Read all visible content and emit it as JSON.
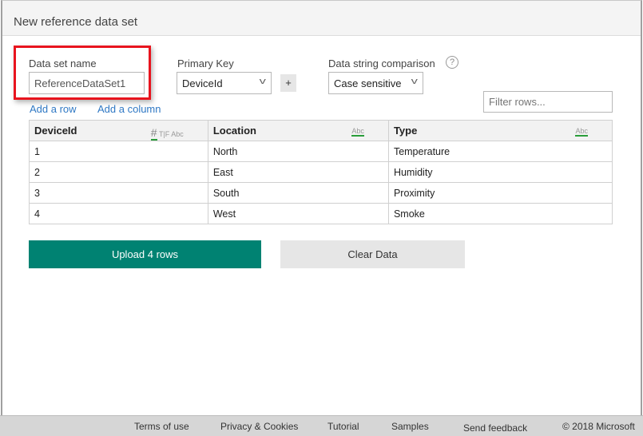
{
  "title": "New reference data set",
  "dataset": {
    "label": "Data set name",
    "value": "ReferenceDataSet1"
  },
  "primary_key": {
    "label": "Primary Key",
    "value": "DeviceId",
    "add": "+"
  },
  "comparison": {
    "label": "Data string comparison",
    "value": "Case sensitive",
    "help": "?"
  },
  "links": {
    "add_row": "Add a row",
    "add_column": "Add a column"
  },
  "filter": {
    "placeholder": "Filter rows..."
  },
  "table": {
    "headers": [
      "DeviceId",
      "Location",
      "Type"
    ],
    "type_hint": "T|F",
    "type_abc": "Abc",
    "num_icon": "#",
    "rows": [
      [
        "1",
        "North",
        "Temperature"
      ],
      [
        "2",
        "East",
        "Humidity"
      ],
      [
        "3",
        "South",
        "Proximity"
      ],
      [
        "4",
        "West",
        "Smoke"
      ]
    ]
  },
  "buttons": {
    "upload": "Upload 4 rows",
    "clear": "Clear Data"
  },
  "footer": {
    "terms": "Terms of use",
    "privacy": "Privacy & Cookies",
    "tutorial": "Tutorial",
    "samples": "Samples",
    "feedback": "Send feedback",
    "copyright": "© 2018 Microsoft"
  },
  "colors": {
    "accent": "#008272",
    "highlight": "#e8141e"
  }
}
